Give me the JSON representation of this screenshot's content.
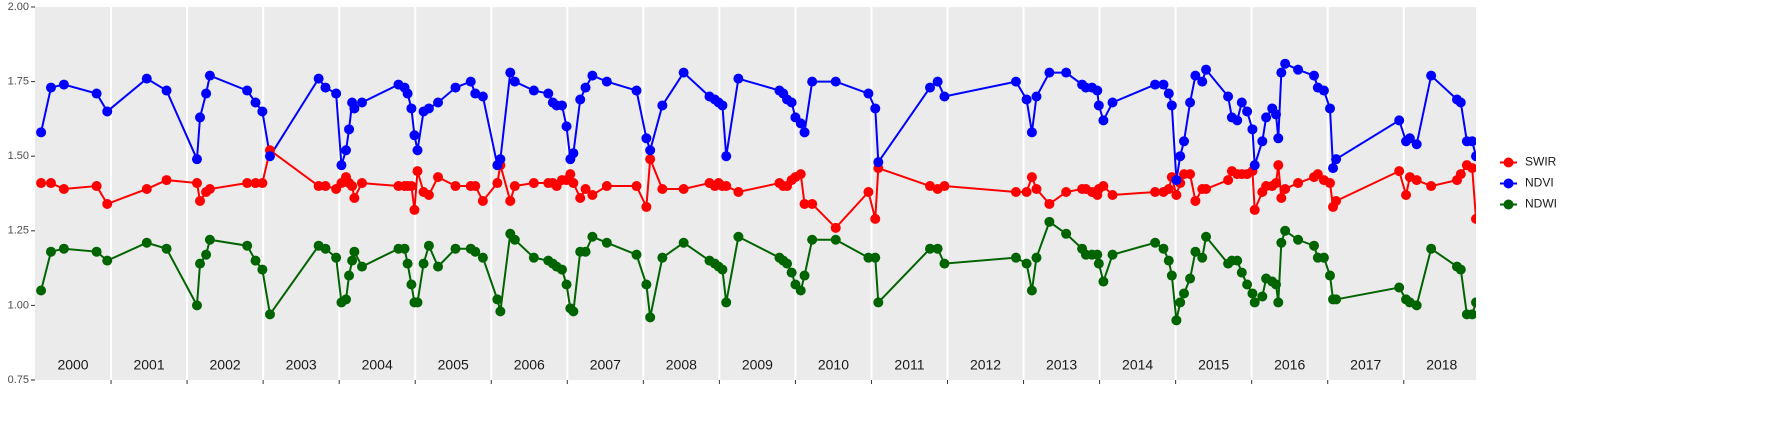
{
  "chart_data": {
    "type": "line",
    "x": [
      2000.08,
      2000.21,
      2000.38,
      2000.81,
      2000.95,
      2001.47,
      2001.73,
      2002.13,
      2002.17,
      2002.25,
      2002.3,
      2002.79,
      2002.9,
      2002.99,
      2003.09,
      2003.73,
      2003.82,
      2003.96,
      2004.03,
      2004.09,
      2004.13,
      2004.17,
      2004.2,
      2004.3,
      2004.78,
      2004.86,
      2004.9,
      2004.95,
      2004.99,
      2005.03,
      2005.11,
      2005.18,
      2005.3,
      2005.53,
      2005.73,
      2005.79,
      2005.89,
      2006.08,
      2006.12,
      2006.25,
      2006.31,
      2006.56,
      2006.75,
      2006.81,
      2006.86,
      2006.93,
      2006.99,
      2007.04,
      2007.08,
      2007.17,
      2007.24,
      2007.33,
      2007.52,
      2007.91,
      2008.04,
      2008.09,
      2008.25,
      2008.53,
      2008.87,
      2008.94,
      2008.99,
      2009.04,
      2009.09,
      2009.25,
      2009.79,
      2009.84,
      2009.89,
      2009.95,
      2010.0,
      2010.07,
      2010.12,
      2010.22,
      2010.53,
      2010.96,
      2011.05,
      2011.09,
      2011.77,
      2011.87,
      2011.96,
      2012.9,
      2013.04,
      2013.11,
      2013.17,
      2013.34,
      2013.56,
      2013.77,
      2013.82,
      2013.9,
      2013.97,
      2013.99,
      2014.05,
      2014.17,
      2014.73,
      2014.84,
      2014.91,
      2014.95,
      2015.01,
      2015.06,
      2015.11,
      2015.19,
      2015.26,
      2015.35,
      2015.4,
      2015.69,
      2015.74,
      2015.81,
      2015.87,
      2015.94,
      2016.01,
      2016.04,
      2016.14,
      2016.19,
      2016.27,
      2016.32,
      2016.35,
      2016.39,
      2016.44,
      2016.61,
      2016.82,
      2016.87,
      2016.95,
      2017.03,
      2017.07,
      2017.11,
      2017.94,
      2018.03,
      2018.08,
      2018.17,
      2018.36,
      2018.7,
      2018.75,
      2018.83,
      2018.9,
      2018.95
    ],
    "series": [
      {
        "name": "SWIR",
        "color": "#ff0000",
        "values": [
          1.41,
          1.41,
          1.39,
          1.4,
          1.34,
          1.39,
          1.42,
          1.41,
          1.35,
          1.38,
          1.39,
          1.41,
          1.41,
          1.41,
          1.52,
          1.4,
          1.4,
          1.39,
          1.41,
          1.43,
          1.41,
          1.4,
          1.36,
          1.41,
          1.4,
          1.4,
          1.4,
          1.4,
          1.32,
          1.45,
          1.38,
          1.37,
          1.43,
          1.4,
          1.4,
          1.4,
          1.35,
          1.41,
          1.47,
          1.35,
          1.4,
          1.41,
          1.41,
          1.41,
          1.4,
          1.42,
          1.42,
          1.44,
          1.41,
          1.36,
          1.39,
          1.37,
          1.4,
          1.4,
          1.33,
          1.49,
          1.39,
          1.39,
          1.41,
          1.4,
          1.41,
          1.4,
          1.4,
          1.38,
          1.41,
          1.4,
          1.4,
          1.42,
          1.43,
          1.44,
          1.34,
          1.34,
          1.26,
          1.38,
          1.29,
          1.46,
          1.4,
          1.39,
          1.4,
          1.38,
          1.38,
          1.43,
          1.39,
          1.34,
          1.38,
          1.39,
          1.39,
          1.38,
          1.37,
          1.39,
          1.4,
          1.37,
          1.38,
          1.38,
          1.39,
          1.43,
          1.37,
          1.41,
          1.44,
          1.44,
          1.35,
          1.39,
          1.39,
          1.42,
          1.45,
          1.44,
          1.44,
          1.44,
          1.45,
          1.32,
          1.38,
          1.4,
          1.4,
          1.41,
          1.47,
          1.36,
          1.39,
          1.41,
          1.43,
          1.44,
          1.42,
          1.41,
          1.33,
          1.35,
          1.45,
          1.37,
          1.43,
          1.42,
          1.4,
          1.42,
          1.44,
          1.47,
          1.46,
          1.29
        ]
      },
      {
        "name": "NDVI",
        "color": "#0000ff",
        "values": [
          1.58,
          1.73,
          1.74,
          1.71,
          1.65,
          1.76,
          1.72,
          1.49,
          1.63,
          1.71,
          1.77,
          1.72,
          1.68,
          1.65,
          1.5,
          1.76,
          1.73,
          1.71,
          1.47,
          1.52,
          1.59,
          1.68,
          1.66,
          1.68,
          1.74,
          1.73,
          1.71,
          1.66,
          1.57,
          1.52,
          1.65,
          1.66,
          1.68,
          1.73,
          1.75,
          1.71,
          1.7,
          1.47,
          1.49,
          1.78,
          1.75,
          1.72,
          1.71,
          1.68,
          1.67,
          1.67,
          1.6,
          1.49,
          1.51,
          1.69,
          1.73,
          1.77,
          1.75,
          1.72,
          1.56,
          1.52,
          1.67,
          1.78,
          1.7,
          1.69,
          1.68,
          1.67,
          1.5,
          1.76,
          1.72,
          1.71,
          1.69,
          1.68,
          1.63,
          1.61,
          1.58,
          1.75,
          1.75,
          1.71,
          1.66,
          1.48,
          1.73,
          1.75,
          1.7,
          1.75,
          1.69,
          1.58,
          1.7,
          1.78,
          1.78,
          1.74,
          1.73,
          1.73,
          1.72,
          1.67,
          1.62,
          1.68,
          1.74,
          1.74,
          1.71,
          1.67,
          1.42,
          1.5,
          1.55,
          1.68,
          1.77,
          1.75,
          1.79,
          1.7,
          1.63,
          1.62,
          1.68,
          1.65,
          1.59,
          1.47,
          1.55,
          1.63,
          1.66,
          1.64,
          1.56,
          1.78,
          1.81,
          1.79,
          1.77,
          1.73,
          1.72,
          1.66,
          1.46,
          1.49,
          1.62,
          1.55,
          1.56,
          1.54,
          1.77,
          1.69,
          1.68,
          1.55,
          1.55,
          1.5
        ]
      },
      {
        "name": "NDWI",
        "color": "#006400",
        "values": [
          1.05,
          1.18,
          1.19,
          1.18,
          1.15,
          1.21,
          1.19,
          1.0,
          1.14,
          1.17,
          1.22,
          1.2,
          1.15,
          1.12,
          0.97,
          1.2,
          1.19,
          1.16,
          1.01,
          1.02,
          1.1,
          1.15,
          1.18,
          1.13,
          1.19,
          1.19,
          1.14,
          1.07,
          1.01,
          1.01,
          1.14,
          1.2,
          1.13,
          1.19,
          1.19,
          1.18,
          1.16,
          1.02,
          0.98,
          1.24,
          1.22,
          1.16,
          1.15,
          1.14,
          1.13,
          1.12,
          1.07,
          0.99,
          0.98,
          1.18,
          1.18,
          1.23,
          1.21,
          1.17,
          1.07,
          0.96,
          1.16,
          1.21,
          1.15,
          1.14,
          1.13,
          1.12,
          1.01,
          1.23,
          1.16,
          1.15,
          1.14,
          1.11,
          1.07,
          1.05,
          1.1,
          1.22,
          1.22,
          1.16,
          1.16,
          1.01,
          1.19,
          1.19,
          1.14,
          1.16,
          1.14,
          1.05,
          1.16,
          1.28,
          1.24,
          1.19,
          1.17,
          1.17,
          1.17,
          1.14,
          1.08,
          1.17,
          1.21,
          1.19,
          1.15,
          1.1,
          0.95,
          1.01,
          1.04,
          1.09,
          1.18,
          1.16,
          1.23,
          1.14,
          1.15,
          1.15,
          1.11,
          1.07,
          1.04,
          1.01,
          1.03,
          1.09,
          1.08,
          1.07,
          1.01,
          1.21,
          1.25,
          1.22,
          1.2,
          1.16,
          1.16,
          1.1,
          1.02,
          1.02,
          1.06,
          1.02,
          1.01,
          1.0,
          1.19,
          1.13,
          1.12,
          0.97,
          0.97,
          1.01
        ]
      }
    ],
    "xlim": [
      2000,
      2018.95
    ],
    "xticks": [
      {
        "value": 2000.5,
        "label": "2000"
      },
      {
        "value": 2001.5,
        "label": "2001"
      },
      {
        "value": 2002.5,
        "label": "2002"
      },
      {
        "value": 2003.5,
        "label": "2003"
      },
      {
        "value": 2004.5,
        "label": "2004"
      },
      {
        "value": 2005.5,
        "label": "2005"
      },
      {
        "value": 2006.5,
        "label": "2006"
      },
      {
        "value": 2007.5,
        "label": "2007"
      },
      {
        "value": 2008.5,
        "label": "2008"
      },
      {
        "value": 2009.5,
        "label": "2009"
      },
      {
        "value": 2010.5,
        "label": "2010"
      },
      {
        "value": 2011.5,
        "label": "2011"
      },
      {
        "value": 2012.5,
        "label": "2012"
      },
      {
        "value": 2013.5,
        "label": "2013"
      },
      {
        "value": 2014.5,
        "label": "2014"
      },
      {
        "value": 2015.5,
        "label": "2015"
      },
      {
        "value": 2016.5,
        "label": "2016"
      },
      {
        "value": 2017.5,
        "label": "2017"
      },
      {
        "value": 2018.5,
        "label": "2018"
      }
    ],
    "xgrid": [
      2001,
      2002,
      2003,
      2004,
      2005,
      2006,
      2007,
      2008,
      2009,
      2010,
      2011,
      2012,
      2013,
      2014,
      2015,
      2016,
      2017,
      2018
    ],
    "ylim": [
      0.75,
      2.0
    ],
    "yticks": [
      {
        "value": 0.75,
        "label": "0.75"
      },
      {
        "value": 1.0,
        "label": "1.00"
      },
      {
        "value": 1.25,
        "label": "1.25"
      },
      {
        "value": 1.5,
        "label": "1.50"
      },
      {
        "value": 1.75,
        "label": "1.75"
      },
      {
        "value": 2.0,
        "label": "2.00"
      }
    ],
    "legend": "right"
  }
}
